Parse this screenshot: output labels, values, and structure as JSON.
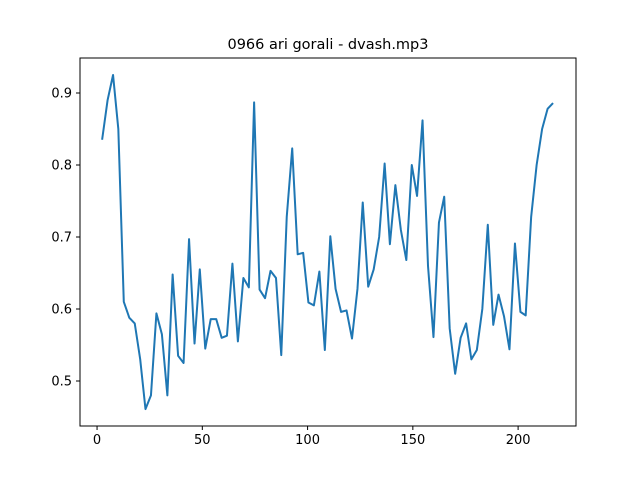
{
  "chart_data": {
    "type": "line",
    "title": "0966 ari gorali - dvash.mp3",
    "x": [
      2.4,
      5.0,
      7.6,
      10.1,
      12.7,
      15.3,
      17.9,
      20.5,
      23.0,
      25.6,
      28.2,
      30.8,
      33.4,
      35.9,
      38.5,
      41.1,
      43.7,
      46.3,
      48.8,
      51.4,
      54.0,
      56.6,
      59.2,
      61.7,
      64.3,
      66.9,
      69.5,
      72.1,
      74.6,
      77.2,
      79.8,
      82.4,
      85.0,
      87.5,
      90.1,
      92.7,
      95.3,
      97.9,
      100.4,
      103.0,
      105.6,
      108.2,
      110.8,
      113.3,
      115.9,
      118.5,
      121.1,
      123.7,
      126.2,
      128.8,
      131.4,
      134.0,
      136.6,
      139.1,
      141.7,
      144.3,
      146.9,
      149.5,
      152.0,
      154.6,
      157.2,
      159.8,
      162.4,
      164.9,
      167.5,
      170.1,
      172.7,
      175.3,
      177.8,
      180.4,
      183.0,
      185.6,
      188.2,
      190.7,
      193.3,
      195.9,
      198.5,
      201.1,
      203.6,
      206.2,
      208.8,
      211.4,
      214.0,
      216.6
    ],
    "values": [
      0.835,
      0.89,
      0.925,
      0.85,
      0.61,
      0.588,
      0.58,
      0.53,
      0.461,
      0.48,
      0.594,
      0.565,
      0.48,
      0.648,
      0.535,
      0.525,
      0.697,
      0.552,
      0.655,
      0.545,
      0.586,
      0.586,
      0.56,
      0.563,
      0.663,
      0.555,
      0.643,
      0.63,
      0.887,
      0.627,
      0.615,
      0.653,
      0.643,
      0.536,
      0.728,
      0.823,
      0.676,
      0.678,
      0.609,
      0.605,
      0.652,
      0.543,
      0.701,
      0.628,
      0.596,
      0.598,
      0.559,
      0.628,
      0.748,
      0.631,
      0.655,
      0.7,
      0.802,
      0.69,
      0.772,
      0.71,
      0.668,
      0.8,
      0.757,
      0.862,
      0.66,
      0.561,
      0.72,
      0.756,
      0.573,
      0.51,
      0.56,
      0.58,
      0.53,
      0.543,
      0.6,
      0.717,
      0.578,
      0.62,
      0.59,
      0.544,
      0.691,
      0.596,
      0.591,
      0.728,
      0.8,
      0.85,
      0.878,
      0.886
    ],
    "color": "#1f77b4",
    "xlim": [
      -8.1,
      227.5
    ],
    "ylim": [
      0.4375,
      0.9486
    ],
    "xticks": [
      0,
      50,
      100,
      150,
      200
    ],
    "yticks": [
      0.5,
      0.6,
      0.7,
      0.8,
      0.9
    ]
  }
}
